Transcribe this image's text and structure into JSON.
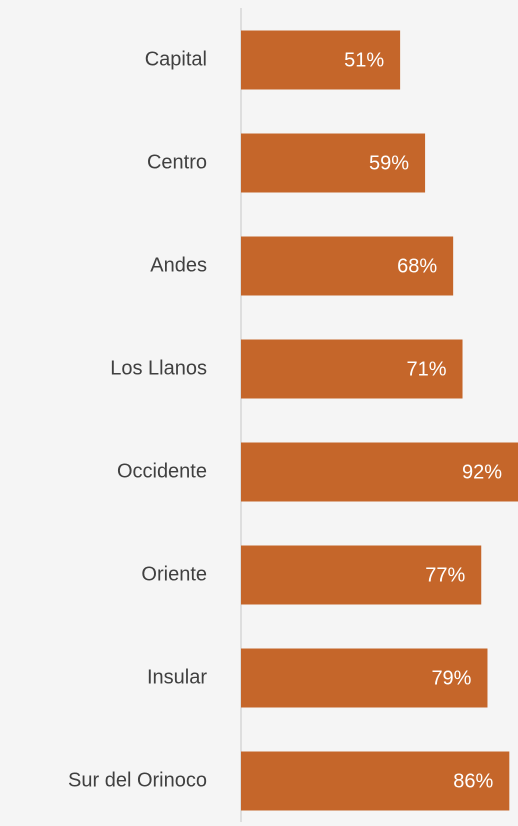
{
  "chart_data": {
    "type": "bar",
    "orientation": "horizontal",
    "categories": [
      "Capital",
      "Centro",
      "Andes",
      "Los Llanos",
      "Occidente",
      "Oriente",
      "Insular",
      "Sur del Orinoco"
    ],
    "values": [
      51,
      59,
      68,
      71,
      92,
      77,
      79,
      86
    ],
    "value_labels": [
      "51%",
      "59%",
      "68%",
      "71%",
      "92%",
      "77%",
      "79%",
      "86%"
    ],
    "color": "#c5662a",
    "xlim": [
      0,
      100
    ]
  }
}
